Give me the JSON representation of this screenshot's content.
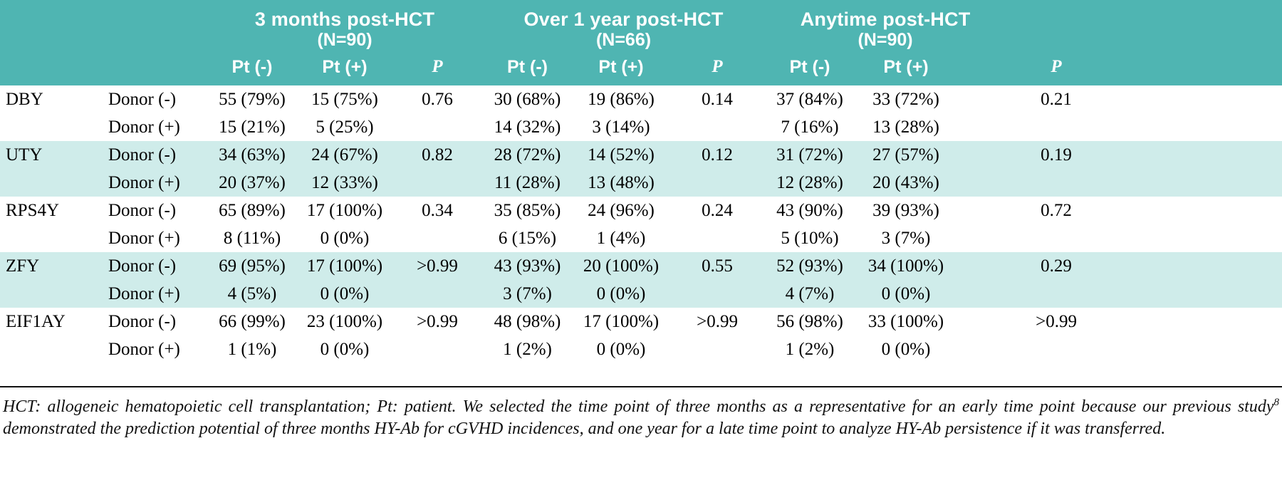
{
  "colors": {
    "header_teal": "#4fb5b2",
    "stripe_teal": "#cfecea",
    "text": "#000000"
  },
  "header": {
    "groups": [
      {
        "title": "3 months post-HCT",
        "n": "(N=90)"
      },
      {
        "title": "Over 1 year post-HCT",
        "n": "(N=66)"
      },
      {
        "title": "Anytime post-HCT",
        "n": "(N=90)"
      }
    ],
    "sub": {
      "pt_neg": "Pt (-)",
      "pt_pos": "Pt (+)",
      "p": "P"
    }
  },
  "rows": [
    {
      "gene": "DBY",
      "shaded": false,
      "lines": [
        {
          "label": "Donor (-)",
          "values": [
            "55 (79%)",
            "15 (75%)",
            "0.76",
            "30 (68%)",
            "19 (86%)",
            "0.14",
            "37 (84%)",
            "33 (72%)",
            "0.21"
          ]
        },
        {
          "label": "Donor (+)",
          "values": [
            "15 (21%)",
            "5 (25%)",
            "",
            "14 (32%)",
            "3 (14%)",
            "",
            "7 (16%)",
            "13 (28%)",
            ""
          ]
        }
      ]
    },
    {
      "gene": "UTY",
      "shaded": true,
      "lines": [
        {
          "label": "Donor (-)",
          "values": [
            "34 (63%)",
            "24 (67%)",
            "0.82",
            "28 (72%)",
            "14 (52%)",
            "0.12",
            "31 (72%)",
            "27 (57%)",
            "0.19"
          ]
        },
        {
          "label": "Donor (+)",
          "values": [
            "20 (37%)",
            "12 (33%)",
            "",
            "11 (28%)",
            "13 (48%)",
            "",
            "12 (28%)",
            "20 (43%)",
            ""
          ]
        }
      ]
    },
    {
      "gene": "RPS4Y",
      "shaded": false,
      "lines": [
        {
          "label": "Donor (-)",
          "values": [
            "65 (89%)",
            "17 (100%)",
            "0.34",
            "35 (85%)",
            "24 (96%)",
            "0.24",
            "43 (90%)",
            "39 (93%)",
            "0.72"
          ]
        },
        {
          "label": "Donor (+)",
          "values": [
            "8 (11%)",
            "0 (0%)",
            "",
            "6 (15%)",
            "1 (4%)",
            "",
            "5 (10%)",
            "3 (7%)",
            ""
          ]
        }
      ]
    },
    {
      "gene": "ZFY",
      "shaded": true,
      "lines": [
        {
          "label": "Donor (-)",
          "values": [
            "69 (95%)",
            "17 (100%)",
            ">0.99",
            "43 (93%)",
            "20 (100%)",
            "0.55",
            "52 (93%)",
            "34 (100%)",
            "0.29"
          ]
        },
        {
          "label": "Donor (+)",
          "values": [
            "4 (5%)",
            "0 (0%)",
            "",
            "3 (7%)",
            "0 (0%)",
            "",
            "4 (7%)",
            "0 (0%)",
            ""
          ]
        }
      ]
    },
    {
      "gene": "EIF1AY",
      "shaded": false,
      "lines": [
        {
          "label": "Donor (-)",
          "values": [
            "66 (99%)",
            "23 (100%)",
            ">0.99",
            "48 (98%)",
            "17 (100%)",
            ">0.99",
            "56 (98%)",
            "33 (100%)",
            ">0.99"
          ]
        },
        {
          "label": "Donor (+)",
          "values": [
            "1 (1%)",
            "0 (0%)",
            "",
            "1 (2%)",
            "0 (0%)",
            "",
            "1 (2%)",
            "0 (0%)",
            ""
          ]
        }
      ]
    }
  ],
  "footnote": {
    "text_before_sup": "HCT: allogeneic hematopoietic cell transplantation; Pt: patient. We selected the time point of three months as a representative for an early time point because our previous study",
    "sup": "8",
    "text_after_sup": " demonstrated the prediction potential of three months HY-Ab for cGVHD incidences, and one year for a late time point to analyze HY-Ab persistence if it was transferred."
  }
}
